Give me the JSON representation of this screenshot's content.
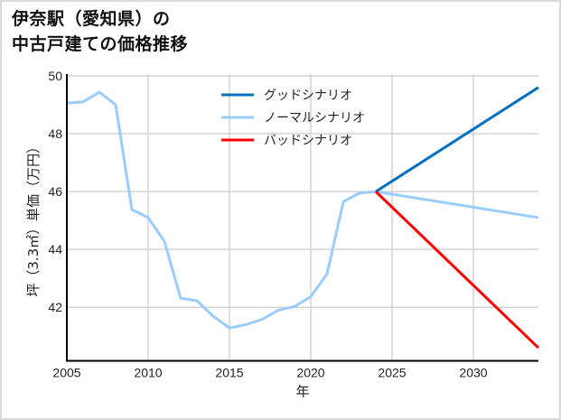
{
  "title": {
    "line1": "伊奈駅（愛知県）の",
    "line2": "中古戸建ての価格推移"
  },
  "chart_data": {
    "type": "line",
    "title": "伊奈駅（愛知県）の中古戸建ての価格推移",
    "xlabel": "年",
    "ylabel": "坪（3.3㎡）単価（万円）",
    "xlim": [
      2005,
      2034
    ],
    "ylim": [
      40.15,
      50
    ],
    "xticks": [
      2005,
      2010,
      2015,
      2020,
      2025,
      2030
    ],
    "yticks": [
      42,
      44,
      46,
      48,
      50
    ],
    "grid": true,
    "legend_position": "upper center",
    "series": [
      {
        "name": "グッドシナリオ",
        "color": "#0070c0",
        "x": [
          2024,
          2034
        ],
        "y": [
          46.0,
          49.6
        ]
      },
      {
        "name": "ノーマルシナリオ",
        "color": "#99ccff",
        "x": [
          2005,
          2006,
          2007,
          2008,
          2009,
          2010,
          2011,
          2012,
          2013,
          2014,
          2015,
          2016,
          2017,
          2018,
          2019,
          2020,
          2021,
          2022,
          2023,
          2024,
          2034
        ],
        "y": [
          49.06,
          49.1,
          49.44,
          49.0,
          45.38,
          45.1,
          44.28,
          42.31,
          42.23,
          41.69,
          41.29,
          41.4,
          41.58,
          41.9,
          42.03,
          42.37,
          43.15,
          45.65,
          45.95,
          46.0,
          45.1
        ]
      },
      {
        "name": "バッドシナリオ",
        "color": "#ff0000",
        "x": [
          2024,
          2034
        ],
        "y": [
          46.0,
          40.6
        ]
      }
    ]
  }
}
